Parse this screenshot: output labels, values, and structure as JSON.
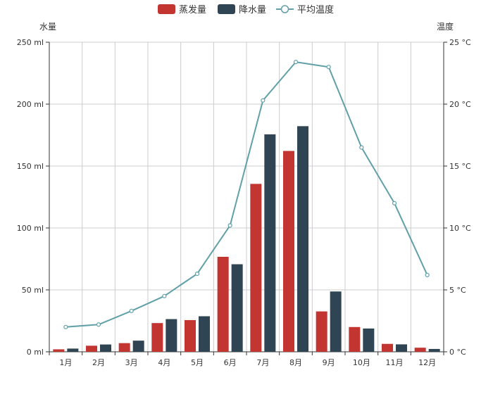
{
  "chart_data": {
    "type": "bar",
    "categories": [
      "1月",
      "2月",
      "3月",
      "4月",
      "5月",
      "6月",
      "7月",
      "8月",
      "9月",
      "10月",
      "11月",
      "12月"
    ],
    "series": [
      {
        "name": "蒸发量",
        "type": "bar",
        "axis": "left",
        "color": "#c23531",
        "values": [
          2.0,
          4.9,
          7.0,
          23.2,
          25.6,
          76.7,
          135.6,
          162.2,
          32.6,
          20.0,
          6.4,
          3.3
        ]
      },
      {
        "name": "降水量",
        "type": "bar",
        "axis": "left",
        "color": "#2f4554",
        "values": [
          2.6,
          5.9,
          9.0,
          26.4,
          28.7,
          70.7,
          175.6,
          182.2,
          48.7,
          18.8,
          6.0,
          2.3
        ]
      },
      {
        "name": "平均温度",
        "type": "line",
        "axis": "right",
        "color": "#61a0a8",
        "values": [
          2.0,
          2.2,
          3.3,
          4.5,
          6.3,
          10.2,
          20.3,
          23.4,
          23.0,
          16.5,
          12.0,
          6.2
        ]
      }
    ],
    "y_left": {
      "name": "水量",
      "ylim": [
        0,
        250
      ],
      "ticks": [
        0,
        50,
        100,
        150,
        200,
        250
      ],
      "tick_labels": [
        "0 ml",
        "50 ml",
        "100 ml",
        "150 ml",
        "200 ml",
        "250 ml"
      ]
    },
    "y_right": {
      "name": "温度",
      "ylim": [
        0,
        25
      ],
      "ticks": [
        0,
        5,
        10,
        15,
        20,
        25
      ],
      "tick_labels": [
        "0 °C",
        "5 °C",
        "10 °C",
        "15 °C",
        "20 °C",
        "25 °C"
      ]
    },
    "grid": true,
    "legend": {
      "position": "top-center",
      "items": [
        {
          "name": "蒸发量",
          "symbol": "rect",
          "color": "#c23531"
        },
        {
          "name": "降水量",
          "symbol": "rect",
          "color": "#2f4554"
        },
        {
          "name": "平均温度",
          "symbol": "line-circle",
          "color": "#61a0a8"
        }
      ]
    }
  }
}
